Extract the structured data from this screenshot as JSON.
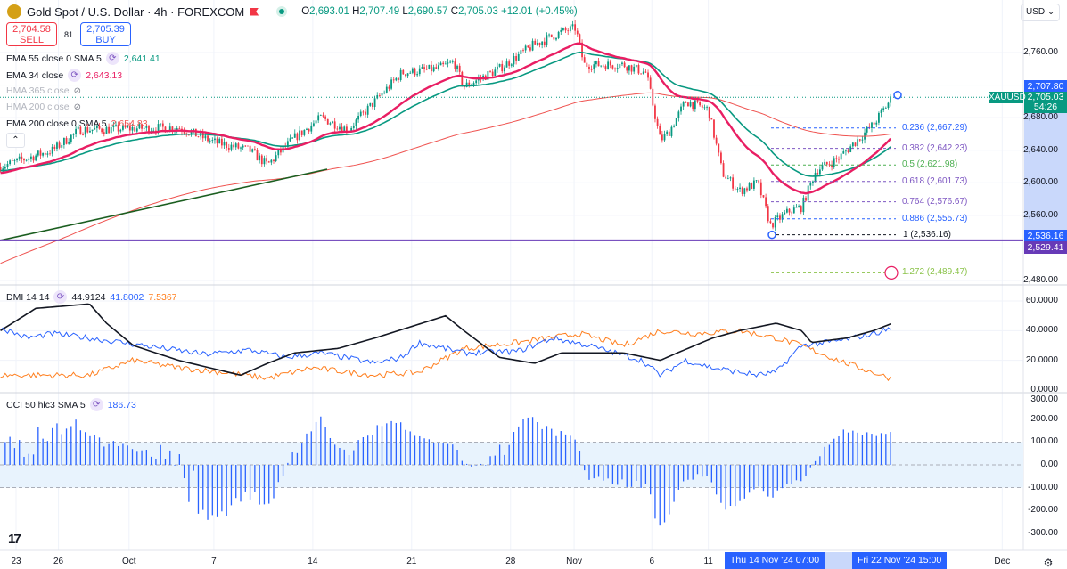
{
  "header": {
    "title": "Gold Spot / U.S. Dollar · 4h · FOREXCOM",
    "o_label": "O",
    "o": "2,693.01",
    "h_label": "H",
    "h": "2,707.49",
    "l_label": "L",
    "l": "2,690.57",
    "c_label": "C",
    "c": "2,705.03",
    "change": "+12.01 (+0.45%)"
  },
  "trade": {
    "sell_price": "2,704.58",
    "sell_label": "SELL",
    "spread": "81",
    "buy_price": "2,705.39",
    "buy_label": "BUY"
  },
  "currency": "USD",
  "legend": {
    "ema55": {
      "label": "EMA 55 close 0 SMA 5",
      "value": "2,641.41"
    },
    "ema34": {
      "label": "EMA 34 close",
      "value": "2,643.13"
    },
    "hma365": {
      "label": "HMA 365 close"
    },
    "hma200": {
      "label": "HMA 200 close"
    },
    "ema200": {
      "label": "EMA 200 close 0 SMA 5",
      "value": "2,654.83"
    },
    "dmi": {
      "label": "DMI 14 14",
      "adx": "44.9124",
      "plus": "41.8002",
      "minus": "7.5367"
    },
    "cci": {
      "label": "CCI 50 hlc3 SMA 5",
      "value": "186.73"
    }
  },
  "price_axis": [
    "2,760.00",
    "2,680.00",
    "2,640.00",
    "2,600.00",
    "2,560.00",
    "2,480.00"
  ],
  "price_badges": {
    "high": "2,707.80",
    "symbol": "XAUUSD",
    "last": "2,705.03",
    "countdown": "54:26",
    "low": "2,536.16",
    "level": "2,529.41"
  },
  "fib": [
    {
      "label": "0.236 (2,667.29)",
      "price": 2667.29,
      "color": "#2962ff"
    },
    {
      "label": "0.382 (2,642.23)",
      "price": 2642.23,
      "color": "#7e57c2"
    },
    {
      "label": "0.5 (2,621.98)",
      "price": 2621.98,
      "color": "#4caf50"
    },
    {
      "label": "0.618 (2,601.73)",
      "price": 2601.73,
      "color": "#7e57c2"
    },
    {
      "label": "0.764 (2,576.67)",
      "price": 2576.67,
      "color": "#7e57c2"
    },
    {
      "label": "0.886 (2,555.73)",
      "price": 2555.73,
      "color": "#2962ff"
    },
    {
      "label": "1 (2,536.16)",
      "price": 2536.16,
      "color": "#131722"
    },
    {
      "label": "1.272 (2,489.47)",
      "price": 2489.47,
      "color": "#8bc34a"
    }
  ],
  "dmi_axis": [
    "60.0000",
    "40.0000",
    "20.0000",
    "0.0000"
  ],
  "cci_axis": [
    "300.00",
    "200.00",
    "100.00",
    "0.00",
    "-100.00",
    "-200.00",
    "-300.00"
  ],
  "time_axis": [
    {
      "label": "23",
      "day": 0
    },
    {
      "label": "26",
      "day": 3
    },
    {
      "label": "Oct",
      "day": 8
    },
    {
      "label": "7",
      "day": 14
    },
    {
      "label": "14",
      "day": 21
    },
    {
      "label": "21",
      "day": 28
    },
    {
      "label": "28",
      "day": 35
    },
    {
      "label": "Nov",
      "day": 39.5
    },
    {
      "label": "6",
      "day": 45
    },
    {
      "label": "11",
      "day": 49
    },
    {
      "label": "Dec",
      "day": 69.8
    }
  ],
  "time_badges": {
    "start": "Thu 14 Nov '24   07:00",
    "end": "Fri 22 Nov '24   15:00"
  },
  "colors": {
    "up": "#089981",
    "down": "#f23645",
    "ema34": "#e91e63",
    "ema55": "#089981",
    "ema200": "#ef5350",
    "adx": "#131722",
    "plus": "#2962ff",
    "minus": "#ff7f1f",
    "cci": "#2962ff",
    "level": "#673ab7"
  },
  "chart_data": {
    "type": "line",
    "price_path": [
      [
        -1.1,
        2620
      ],
      [
        2.6,
        2640
      ],
      [
        4.5,
        2665
      ],
      [
        11.5,
        2668
      ],
      [
        14,
        2650
      ],
      [
        16.5,
        2640
      ],
      [
        17.8,
        2622
      ],
      [
        19.7,
        2655
      ],
      [
        21.6,
        2680
      ],
      [
        23.5,
        2665
      ],
      [
        25.4,
        2700
      ],
      [
        27.3,
        2735
      ],
      [
        29.8,
        2740
      ],
      [
        31,
        2748
      ],
      [
        31.7,
        2718
      ],
      [
        34.2,
        2740
      ],
      [
        36.7,
        2770
      ],
      [
        38.6,
        2785
      ],
      [
        39.6,
        2790
      ],
      [
        40.2,
        2745
      ],
      [
        43,
        2745
      ],
      [
        44.6,
        2735
      ],
      [
        45.6,
        2652
      ],
      [
        46.2,
        2662
      ],
      [
        47.4,
        2700
      ],
      [
        49,
        2690
      ],
      [
        50,
        2612
      ],
      [
        51.2,
        2590
      ],
      [
        52.5,
        2600
      ],
      [
        53.4,
        2548
      ],
      [
        54.7,
        2565
      ],
      [
        55.6,
        2570
      ],
      [
        56.6,
        2615
      ],
      [
        58.2,
        2630
      ],
      [
        59.4,
        2650
      ],
      [
        60.7,
        2672
      ],
      [
        62,
        2705
      ]
    ],
    "adx": [
      [
        -1.1,
        40
      ],
      [
        1.4,
        55
      ],
      [
        5.2,
        58
      ],
      [
        6.4,
        45
      ],
      [
        8.3,
        30
      ],
      [
        11.5,
        20
      ],
      [
        15.9,
        10
      ],
      [
        17.8,
        18
      ],
      [
        19.7,
        25
      ],
      [
        22.8,
        28
      ],
      [
        25.4,
        35
      ],
      [
        30.4,
        50
      ],
      [
        31.7,
        40
      ],
      [
        34.2,
        22
      ],
      [
        36.7,
        18
      ],
      [
        38.6,
        25
      ],
      [
        43,
        25
      ],
      [
        45.6,
        20
      ],
      [
        46.8,
        25
      ],
      [
        49.3,
        35
      ],
      [
        51.2,
        40
      ],
      [
        53.8,
        45
      ],
      [
        55.6,
        40
      ],
      [
        56.3,
        32
      ],
      [
        58.8,
        35
      ],
      [
        60.7,
        40
      ],
      [
        62,
        44.9
      ]
    ],
    "plus_di": [
      [
        -1.1,
        42
      ],
      [
        0.8,
        35
      ],
      [
        2.6,
        38
      ],
      [
        5.2,
        35
      ],
      [
        9,
        30
      ],
      [
        13.4,
        24
      ],
      [
        16.5,
        27
      ],
      [
        19.1,
        22
      ],
      [
        21.6,
        25
      ],
      [
        25.4,
        18
      ],
      [
        27.3,
        22
      ],
      [
        28.5,
        32
      ],
      [
        31.7,
        25
      ],
      [
        35.5,
        26
      ],
      [
        38,
        35
      ],
      [
        40.5,
        30
      ],
      [
        44.3,
        20
      ],
      [
        45.6,
        10
      ],
      [
        47.4,
        20
      ],
      [
        49.3,
        15
      ],
      [
        52.5,
        10
      ],
      [
        53.8,
        12
      ],
      [
        55.6,
        30
      ],
      [
        58.2,
        33
      ],
      [
        60.7,
        38
      ],
      [
        62,
        41.8
      ]
    ],
    "minus_di": [
      [
        -1.1,
        10
      ],
      [
        2.6,
        10
      ],
      [
        5.2,
        10
      ],
      [
        8.3,
        20
      ],
      [
        11.5,
        15
      ],
      [
        14.6,
        12
      ],
      [
        17.8,
        8
      ],
      [
        20.9,
        15
      ],
      [
        25.4,
        10
      ],
      [
        28.5,
        12
      ],
      [
        31.7,
        28
      ],
      [
        35.5,
        32
      ],
      [
        39.9,
        38
      ],
      [
        43,
        30
      ],
      [
        45.6,
        40
      ],
      [
        48.1,
        38
      ],
      [
        51.2,
        40
      ],
      [
        53.8,
        35
      ],
      [
        55.6,
        30
      ],
      [
        58.2,
        20
      ],
      [
        62,
        7.5
      ]
    ],
    "price_range": [
      2480,
      2760
    ],
    "dmi_range": [
      0,
      60
    ],
    "cci_range": [
      -300,
      300
    ]
  }
}
